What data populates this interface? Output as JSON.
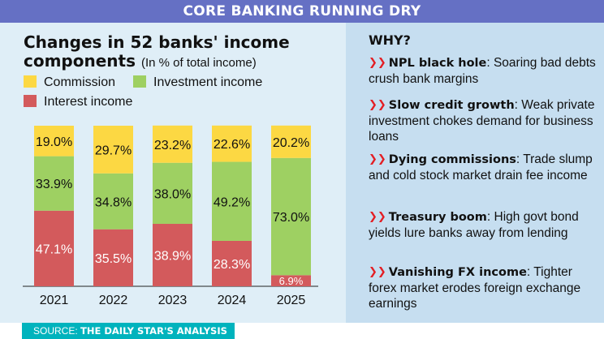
{
  "banner": "CORE BANKING RUNNING DRY",
  "title": {
    "main": "Changes in 52 banks' income components",
    "subtitle": "(In % of total income)"
  },
  "colors": {
    "commission": "#fcd843",
    "investment": "#9ed062",
    "interest": "#d35a5c",
    "banner": "#6570c4",
    "arrow": "#e31e24",
    "source_bg": "#00b3bd"
  },
  "chart_data": {
    "type": "bar",
    "stacked": true,
    "categories": [
      "2021",
      "2022",
      "2023",
      "2024",
      "2025"
    ],
    "series": [
      {
        "name": "Interest income",
        "values": [
          47.1,
          35.5,
          38.9,
          28.3,
          6.9
        ],
        "labels": [
          "47.1%",
          "35.5%",
          "38.9%",
          "28.3%",
          "6.9%"
        ]
      },
      {
        "name": "Investment income",
        "values": [
          33.9,
          34.8,
          38.0,
          49.2,
          73.0
        ],
        "labels": [
          "33.9%",
          "34.8%",
          "38.0%",
          "49.2%",
          "73.0%"
        ]
      },
      {
        "name": "Commission",
        "values": [
          19.0,
          29.7,
          23.2,
          22.6,
          20.2
        ],
        "labels": [
          "19.0%",
          "29.7%",
          "23.2%",
          "22.6%",
          "20.2%"
        ]
      }
    ],
    "ylim": [
      0,
      100
    ],
    "legend": [
      "Commission",
      "Investment income",
      "Interest income"
    ],
    "legend_position": "top-left",
    "grid": false
  },
  "why": {
    "title": "WHY?",
    "reasons": [
      {
        "head": "NPL black hole",
        "text": ": Soaring bad debts crush bank margins"
      },
      {
        "head": "Slow credit growth",
        "text": ": Weak private investment chokes demand for business loans"
      },
      {
        "head": "Dying commissions",
        "text": ": Trade slump and cold stock market drain fee income"
      },
      {
        "head": "Treasury boom",
        "text": ": High govt bond yields lure banks away from lending"
      },
      {
        "head": "Vanishing FX income",
        "text": ": Tighter forex market erodes foreign exchange earnings"
      }
    ]
  },
  "source": {
    "label": "SOURCE:",
    "text": "THE DAILY STAR'S ANALYSIS"
  }
}
